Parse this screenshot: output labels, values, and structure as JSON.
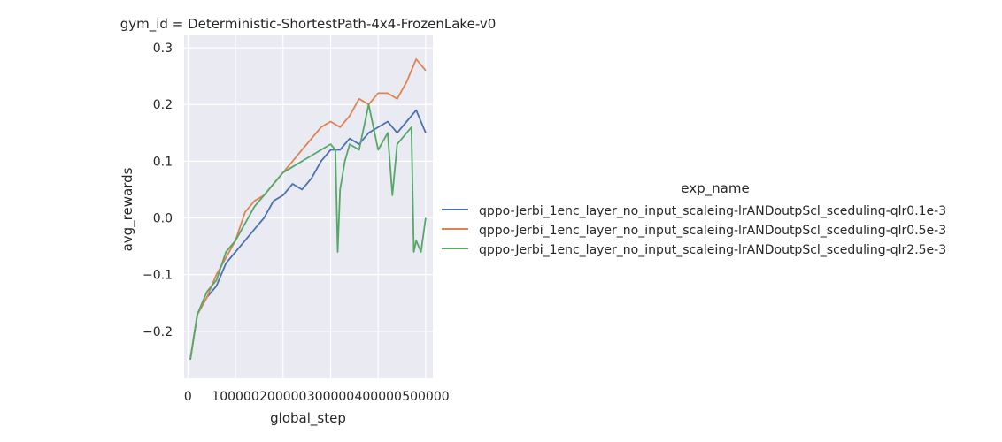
{
  "chart_data": {
    "type": "line",
    "title": "gym_id = Deterministic-ShortestPath-4x4-FrozenLake-v0",
    "xlabel": "global_step",
    "ylabel": "avg_rewards",
    "xlim": [
      -8000,
      515000
    ],
    "ylim": [
      -0.283,
      0.322
    ],
    "xticks": [
      0,
      100000,
      200000,
      300000,
      400000,
      500000
    ],
    "xtick_labels": [
      "0",
      "100000",
      "200000",
      "300000",
      "400000",
      "500000"
    ],
    "yticks": [
      -0.2,
      -0.1,
      0.0,
      0.1,
      0.2,
      0.3
    ],
    "ytick_labels": [
      "−0.2",
      "−0.1",
      "0.0",
      "0.1",
      "0.2",
      "0.3"
    ],
    "grid": true,
    "legend": {
      "title": "exp_name",
      "placement": "right outside"
    },
    "series": [
      {
        "name": "qppo-Jerbi_1enc_layer_no_input_scaleing-lrANDoutpScl_sceduling-qlr0.1e-3",
        "color": "#4c72b0",
        "x": [
          5000,
          20000,
          40000,
          60000,
          80000,
          100000,
          120000,
          140000,
          160000,
          180000,
          200000,
          220000,
          240000,
          260000,
          280000,
          300000,
          320000,
          340000,
          360000,
          380000,
          400000,
          420000,
          440000,
          460000,
          480000,
          500000
        ],
        "y": [
          -0.25,
          -0.17,
          -0.14,
          -0.12,
          -0.08,
          -0.06,
          -0.04,
          -0.02,
          0.0,
          0.03,
          0.04,
          0.06,
          0.05,
          0.07,
          0.1,
          0.12,
          0.12,
          0.14,
          0.13,
          0.15,
          0.16,
          0.17,
          0.15,
          0.17,
          0.19,
          0.15
        ]
      },
      {
        "name": "qppo-Jerbi_1enc_layer_no_input_scaleing-lrANDoutpScl_sceduling-qlr0.5e-3",
        "color": "#dd8452",
        "x": [
          5000,
          20000,
          40000,
          60000,
          80000,
          100000,
          120000,
          140000,
          160000,
          180000,
          200000,
          220000,
          240000,
          260000,
          280000,
          300000,
          320000,
          340000,
          360000,
          380000,
          400000,
          420000,
          440000,
          460000,
          480000,
          500000
        ],
        "y": [
          -0.25,
          -0.17,
          -0.14,
          -0.1,
          -0.07,
          -0.04,
          0.01,
          0.03,
          0.04,
          0.06,
          0.08,
          0.1,
          0.12,
          0.14,
          0.16,
          0.17,
          0.16,
          0.18,
          0.21,
          0.2,
          0.22,
          0.22,
          0.21,
          0.24,
          0.28,
          0.26
        ]
      },
      {
        "name": "qppo-Jerbi_1enc_layer_no_input_scaleing-lrANDoutpScl_sceduling-qlr2.5e-3",
        "color": "#55a868",
        "x": [
          5000,
          20000,
          40000,
          60000,
          80000,
          100000,
          120000,
          140000,
          160000,
          180000,
          200000,
          220000,
          240000,
          260000,
          280000,
          300000,
          310000,
          315000,
          320000,
          330000,
          340000,
          360000,
          380000,
          400000,
          420000,
          430000,
          440000,
          460000,
          470000,
          475000,
          480000,
          490000,
          500000
        ],
        "y": [
          -0.25,
          -0.17,
          -0.13,
          -0.11,
          -0.06,
          -0.04,
          -0.01,
          0.02,
          0.04,
          0.06,
          0.08,
          0.09,
          0.1,
          0.11,
          0.12,
          0.13,
          0.12,
          -0.06,
          0.05,
          0.1,
          0.13,
          0.12,
          0.2,
          0.12,
          0.15,
          0.04,
          0.13,
          0.15,
          0.16,
          -0.06,
          -0.04,
          -0.06,
          0.0
        ]
      }
    ]
  }
}
